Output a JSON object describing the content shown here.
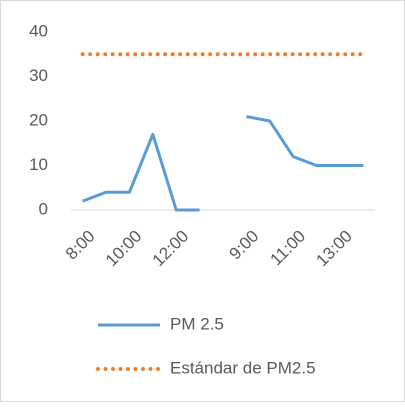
{
  "chart_data": {
    "type": "line",
    "categories": [
      "8:00",
      null,
      "10:00",
      null,
      "12:00",
      null,
      null,
      "9:00",
      null,
      "11:00",
      null,
      "13:00",
      null
    ],
    "series": [
      {
        "name": "PM 2.5",
        "color": "#5b9bd5",
        "style": "solid",
        "values": [
          2,
          4,
          4,
          17,
          0,
          0,
          null,
          21,
          20,
          12,
          10,
          10,
          10
        ]
      },
      {
        "name": "Estándar de PM2.5",
        "color": "#ed7d31",
        "style": "dotted",
        "values": [
          35,
          35,
          35,
          35,
          35,
          35,
          35,
          35,
          35,
          35,
          35,
          35,
          35
        ]
      }
    ],
    "ylim": [
      0,
      40
    ],
    "yticks": [
      0,
      10,
      20,
      30,
      40
    ],
    "grid": false,
    "legend": "bottom"
  }
}
